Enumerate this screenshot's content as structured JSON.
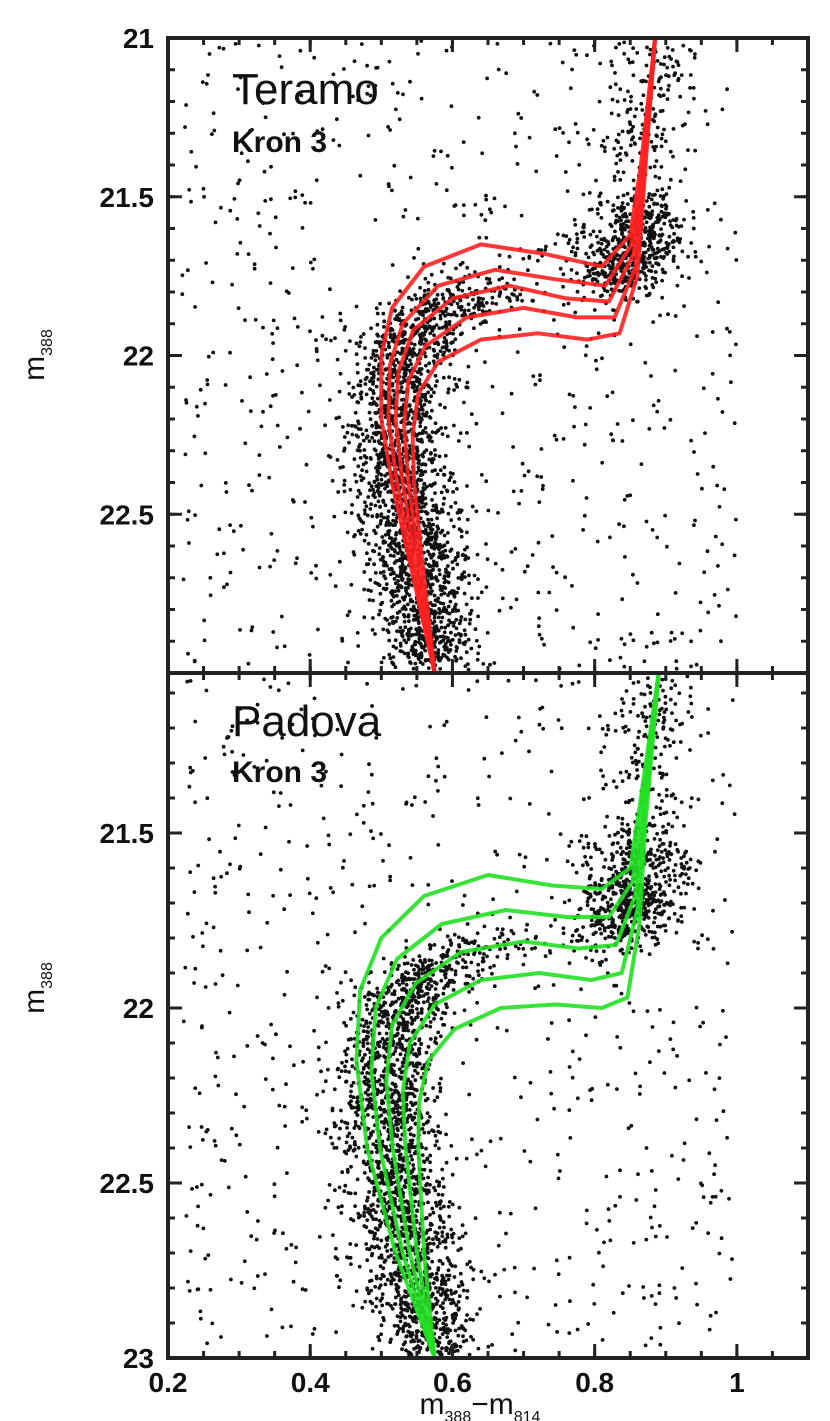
{
  "colors": {
    "teramo": "#ff2020",
    "padova": "#22e022",
    "points": "#111111"
  },
  "axes": {
    "xlabel_main": "m",
    "xlabel_sub1": "388",
    "xlabel_op": "−m",
    "xlabel_sub2": "814",
    "ylabel_main": "m",
    "ylabel_sub": "388"
  },
  "chart_data": [
    {
      "type": "scatter",
      "title": "Teramo",
      "subtitle": "Kron 3",
      "xlim": [
        0.2,
        1.1
      ],
      "ylim": [
        23,
        21
      ],
      "yticks": [
        21,
        21.5,
        22,
        22.5
      ],
      "yticklabels": [
        "21",
        "21.5",
        "22",
        "22.5"
      ],
      "xticks": [
        0.2,
        0.4,
        0.6,
        0.8,
        1.0
      ],
      "isochrones": {
        "color": "red",
        "series": [
          {
            "x": [
              0.575,
              0.545,
              0.515,
              0.5,
              0.5,
              0.515,
              0.56,
              0.64,
              0.73,
              0.81,
              0.85,
              0.865,
              0.885
            ],
            "y": [
              23.0,
              22.7,
              22.4,
              22.2,
              22.0,
              21.85,
              21.72,
              21.65,
              21.68,
              21.72,
              21.62,
              21.4,
              21.0
            ]
          },
          {
            "x": [
              0.575,
              0.548,
              0.522,
              0.51,
              0.512,
              0.53,
              0.58,
              0.66,
              0.745,
              0.815,
              0.852,
              0.866,
              0.885
            ],
            "y": [
              23.0,
              22.7,
              22.4,
              22.2,
              22.03,
              21.9,
              21.78,
              21.73,
              21.76,
              21.78,
              21.65,
              21.42,
              21.0
            ]
          },
          {
            "x": [
              0.575,
              0.552,
              0.53,
              0.52,
              0.524,
              0.545,
              0.6,
              0.68,
              0.76,
              0.82,
              0.855,
              0.867,
              0.885
            ],
            "y": [
              23.0,
              22.7,
              22.4,
              22.2,
              22.05,
              21.92,
              21.82,
              21.78,
              21.82,
              21.83,
              21.68,
              21.44,
              21.0
            ]
          },
          {
            "x": [
              0.575,
              0.556,
              0.538,
              0.532,
              0.538,
              0.562,
              0.62,
              0.7,
              0.775,
              0.828,
              0.858,
              0.868,
              0.885
            ],
            "y": [
              23.0,
              22.7,
              22.4,
              22.22,
              22.08,
              21.97,
              21.88,
              21.85,
              21.88,
              21.88,
              21.72,
              21.46,
              21.0
            ]
          },
          {
            "x": [
              0.575,
              0.56,
              0.546,
              0.544,
              0.552,
              0.58,
              0.64,
              0.72,
              0.79,
              0.835,
              0.86,
              0.869,
              0.885
            ],
            "y": [
              23.0,
              22.7,
              22.4,
              22.25,
              22.12,
              22.02,
              21.95,
              21.93,
              21.95,
              21.93,
              21.75,
              21.48,
              21.0
            ]
          }
        ]
      }
    },
    {
      "type": "scatter",
      "title": "Padova",
      "subtitle": "Kron 3",
      "xlim": [
        0.2,
        1.1
      ],
      "ylim": [
        23,
        21
      ],
      "yticks": [
        21.5,
        22,
        22.5,
        23
      ],
      "yticklabels": [
        "21.5",
        "22",
        "22.5",
        "23"
      ],
      "xticks": [
        0.2,
        0.4,
        0.6,
        0.8,
        1.0
      ],
      "xticklabels": [
        "0.2",
        "0.4",
        "0.6",
        "0.8",
        "1"
      ],
      "isochrones": {
        "color": "green",
        "series": [
          {
            "x": [
              0.575,
              0.52,
              0.48,
              0.465,
              0.47,
              0.5,
              0.56,
              0.65,
              0.74,
              0.81,
              0.85,
              0.865,
              0.89
            ],
            "y": [
              23.0,
              22.7,
              22.4,
              22.15,
              21.95,
              21.8,
              21.68,
              21.62,
              21.65,
              21.66,
              21.6,
              21.4,
              21.0
            ]
          },
          {
            "x": [
              0.575,
              0.53,
              0.498,
              0.486,
              0.492,
              0.522,
              0.585,
              0.675,
              0.76,
              0.82,
              0.853,
              0.867,
              0.89
            ],
            "y": [
              23.0,
              22.7,
              22.4,
              22.18,
              22.0,
              21.86,
              21.76,
              21.72,
              21.74,
              21.74,
              21.64,
              21.42,
              21.0
            ]
          },
          {
            "x": [
              0.575,
              0.54,
              0.516,
              0.507,
              0.515,
              0.548,
              0.612,
              0.7,
              0.778,
              0.83,
              0.857,
              0.869,
              0.89
            ],
            "y": [
              23.0,
              22.7,
              22.4,
              22.21,
              22.05,
              21.93,
              21.84,
              21.81,
              21.83,
              21.82,
              21.68,
              21.44,
              21.0
            ]
          },
          {
            "x": [
              0.575,
              0.55,
              0.534,
              0.53,
              0.54,
              0.575,
              0.64,
              0.722,
              0.795,
              0.838,
              0.86,
              0.87,
              0.89
            ],
            "y": [
              23.0,
              22.7,
              22.4,
              22.24,
              22.1,
              21.99,
              21.92,
              21.9,
              21.92,
              21.9,
              21.72,
              21.46,
              21.0
            ]
          },
          {
            "x": [
              0.575,
              0.56,
              0.552,
              0.553,
              0.566,
              0.603,
              0.668,
              0.745,
              0.81,
              0.846,
              0.863,
              0.871,
              0.89
            ],
            "y": [
              23.0,
              22.7,
              22.4,
              22.27,
              22.15,
              22.06,
              22.0,
              21.99,
              22.0,
              21.97,
              21.76,
              21.48,
              21.0
            ]
          }
        ]
      }
    }
  ]
}
